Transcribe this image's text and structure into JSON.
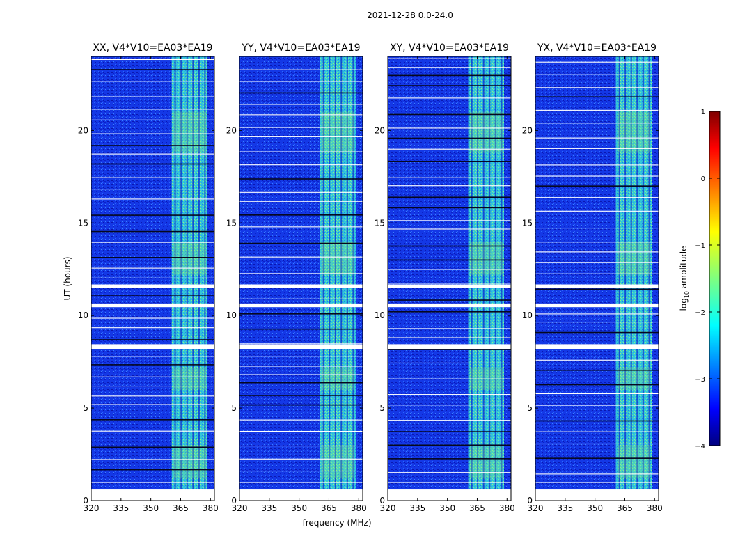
{
  "chart_data": {
    "type": "heatmap",
    "suptitle": "2021-12-28 0.0-24.0",
    "xlabel": "frequency (MHz)",
    "ylabel": "UT (hours)",
    "xlim": [
      320,
      382
    ],
    "ylim": [
      0,
      24
    ],
    "xticks": [
      320,
      335,
      350,
      365,
      380
    ],
    "yticks": [
      0,
      5,
      10,
      15,
      20
    ],
    "panels": [
      {
        "title": "XX, V4*V10=EA03*EA19",
        "band_start_mhz": 360.5,
        "band_end_mhz": 378.5
      },
      {
        "title": "YY, V4*V10=EA03*EA19",
        "band_start_mhz": 360.5,
        "band_end_mhz": 378.5
      },
      {
        "title": "XY, V4*V10=EA03*EA19",
        "band_start_mhz": 360.5,
        "band_end_mhz": 378.5
      },
      {
        "title": "YX, V4*V10=EA03*EA19",
        "band_start_mhz": 360.5,
        "band_end_mhz": 378.5
      }
    ],
    "flagged_hours": [
      0.6,
      8.3,
      8.35,
      10.5,
      10.6,
      11.5,
      11.6
    ],
    "colorbar": {
      "label": "log10 amplitude",
      "label_main": "log",
      "label_sub": "10",
      "label_tail": " amplitude",
      "range": [
        -4,
        1
      ],
      "ticks": [
        1,
        0,
        -1,
        -2,
        -3,
        -4
      ],
      "tick_labels": [
        "1",
        "0",
        "−1",
        "−2",
        "−3",
        "−4"
      ],
      "colormap": "jet"
    }
  },
  "colors": {
    "background": "#0a1fd6",
    "band": "#3fd6c0",
    "flag": "#ffffff",
    "dropout": "#06081f"
  }
}
